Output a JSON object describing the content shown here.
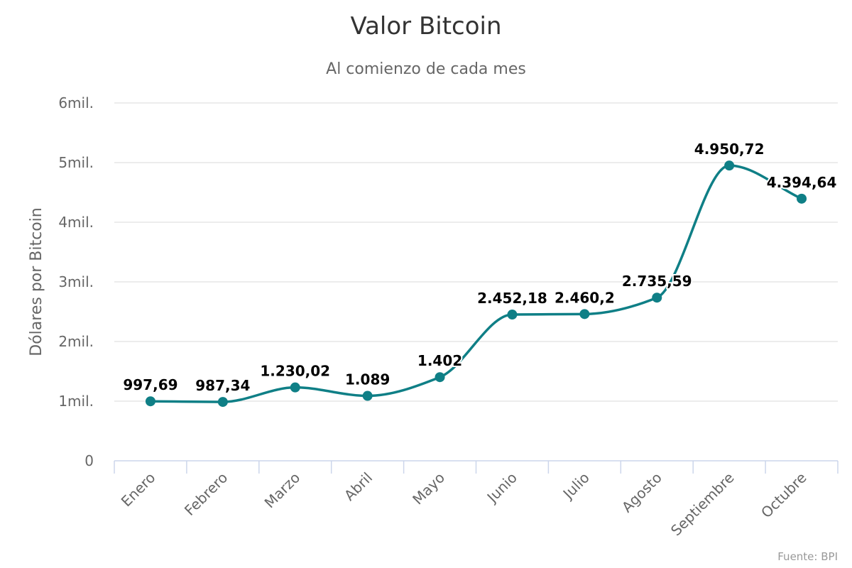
{
  "chart_data": {
    "type": "line",
    "title": "Valor Bitcoin",
    "subtitle": "Al comienzo de cada mes",
    "xlabel": "",
    "ylabel": "Dólares por Bitcoin",
    "categories": [
      "Enero",
      "Febrero",
      "Marzo",
      "Abril",
      "Mayo",
      "Junio",
      "Julio",
      "Agosto",
      "Septiembre",
      "Octubre"
    ],
    "series": [
      {
        "values": [
          997.69,
          987.34,
          1230.02,
          1089,
          1402,
          2452.18,
          2460.2,
          2735.59,
          4950.72,
          4394.64
        ],
        "data_labels": [
          "997,69",
          "987,34",
          "1.230,02",
          "1.089",
          "1.402",
          "2.452,18",
          "2.460,2",
          "2.735,59",
          "4.950,72",
          "4.394,64"
        ],
        "color": "#0f7f86"
      }
    ],
    "ylim": [
      0,
      6000
    ],
    "yticks": [
      0,
      1000,
      2000,
      3000,
      4000,
      5000,
      6000
    ],
    "ytick_labels": [
      "0",
      "1mil.",
      "2mil.",
      "3mil.",
      "4mil.",
      "5mil.",
      "6mil."
    ],
    "grid": true,
    "legend": "none",
    "colors": {
      "line": "#0f7f86",
      "grid": "#e6e6e6",
      "axis": "#ccd6eb"
    }
  },
  "credits": "Fuente: BPI"
}
